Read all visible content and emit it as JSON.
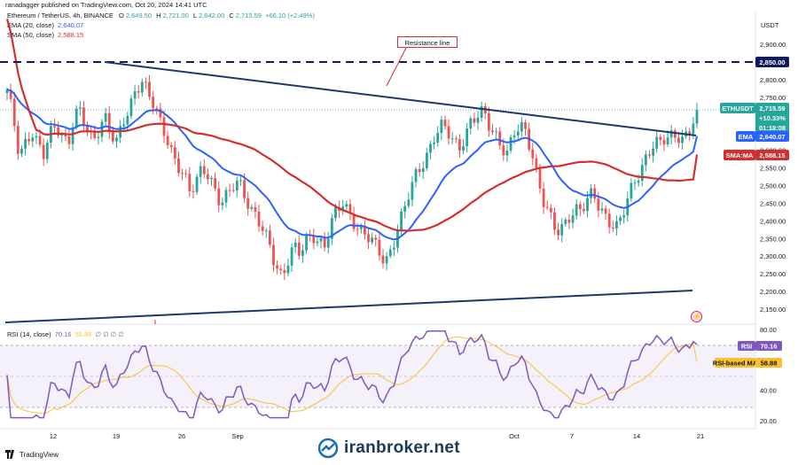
{
  "header": {
    "published": "ranadagger published on TradingView.com, Oct 20, 2024 14:41 UTC"
  },
  "symbol": {
    "name": "Ethereum / TetherUS, 4h, BINANCE",
    "open_label": "O",
    "open": "2,649.50",
    "high_label": "H",
    "high": "2,721.00",
    "low_label": "L",
    "low": "2,642.00",
    "close_label": "C",
    "close": "2,715.59",
    "change": "+66.10 (+2.49%)"
  },
  "ema": {
    "label": "EMA (20, close)",
    "value": "2,640.07"
  },
  "sma": {
    "label": "SMA (50, close)",
    "value": "2,588.15"
  },
  "rsi_legend": {
    "label": "RSI (14, close)",
    "value": "70.16",
    "value2": "58.88",
    "extra": "∅ ∅ ∅ ∅"
  },
  "annotation": {
    "text": "Resistance line"
  },
  "currency": "USDT",
  "tags": {
    "level": "2,850.00",
    "ticker": "ETHUSDT",
    "price": "2,715.59",
    "pct": "+10.33%",
    "timer": "01:18:08",
    "ema_name": "EMA",
    "ema_value": "2,640.07",
    "sma_name": "SMA:MA",
    "sma_value": "2,588.15",
    "rsi_name": "RSI",
    "rsi_value": "70.16",
    "rsima_name": "RSI-based MA",
    "rsima_value": "58.88"
  },
  "footer": {
    "brand": "TradingView",
    "watermark": "iranbroker.net"
  },
  "colors": {
    "up": "#26a69a",
    "down": "#ef5350",
    "ema": "#2962ff",
    "sma": "#d32f2f",
    "trendline": "#1b3a6b",
    "level": "#0d1b5e",
    "rsi": "#7e57c2",
    "rsi_ma": "#fbc02d"
  },
  "chart_data": [
    {
      "type": "candlestick",
      "title": "Ethereum / TetherUS, 4h, BINANCE",
      "x_ticks": [
        "12",
        "19",
        "26",
        "Sep",
        "Oct",
        "7",
        "14",
        "21"
      ],
      "y_ticks": [
        2150,
        2200,
        2250,
        2300,
        2350,
        2400,
        2450,
        2500,
        2550,
        2600,
        2650,
        2700,
        2750,
        2800,
        2850,
        2900
      ],
      "y_tick_labels": [
        "2,150.00",
        "2,200.00",
        "2,250.00",
        "2,300.00",
        "2,350.00",
        "2,400.00",
        "2,450.00",
        "2,500.00",
        "2,550.00",
        "2,600.00",
        "2,650.00",
        "2,700.00",
        "2,750.00",
        "2,800.00",
        "2,850.00",
        "2,900.00"
      ],
      "ylim": [
        2110,
        2960
      ],
      "closes": [
        2760,
        2690,
        2590,
        2630,
        2660,
        2610,
        2580,
        2640,
        2680,
        2650,
        2620,
        2690,
        2700,
        2660,
        2630,
        2670,
        2700,
        2640,
        2610,
        2680,
        2720,
        2780,
        2800,
        2760,
        2720,
        2680,
        2650,
        2600,
        2560,
        2520,
        2470,
        2510,
        2560,
        2540,
        2490,
        2440,
        2460,
        2500,
        2520,
        2480,
        2430,
        2400,
        2360,
        2330,
        2280,
        2250,
        2290,
        2320,
        2300,
        2340,
        2370,
        2350,
        2330,
        2380,
        2420,
        2450,
        2430,
        2400,
        2370,
        2350,
        2330,
        2310,
        2290,
        2330,
        2380,
        2420,
        2480,
        2530,
        2570,
        2600,
        2640,
        2660,
        2650,
        2630,
        2610,
        2650,
        2680,
        2690,
        2700,
        2670,
        2650,
        2620,
        2590,
        2640,
        2660,
        2650,
        2600,
        2520,
        2450,
        2400,
        2360,
        2380,
        2420,
        2440,
        2430,
        2450,
        2470,
        2440,
        2420,
        2400,
        2380,
        2420,
        2470,
        2520,
        2560,
        2600,
        2620,
        2610,
        2630,
        2640,
        2650,
        2640,
        2660,
        2715
      ],
      "series": [
        {
          "name": "EMA (20, close)",
          "last": 2640.07
        },
        {
          "name": "SMA (50, close)",
          "last": 2588.15
        }
      ],
      "horizontal_levels": [
        2850
      ],
      "trendlines": [
        {
          "name": "Resistance line",
          "from": [
            "Aug 5",
            2850
          ],
          "to": [
            "Oct 20",
            2640
          ]
        },
        {
          "from": [
            "Aug 5",
            2110
          ],
          "to": [
            "Oct 20",
            2200
          ]
        }
      ]
    },
    {
      "type": "line",
      "title": "RSI (14, close)",
      "y_ticks": [
        20,
        40,
        60,
        80
      ],
      "y_tick_labels": [
        "20.00",
        "40.00",
        "60.00",
        "80.00"
      ],
      "ylim": [
        15,
        85
      ],
      "bands": [
        30,
        70
      ],
      "series": [
        {
          "name": "RSI",
          "last": 70.16
        },
        {
          "name": "RSI-based MA",
          "last": 58.88
        }
      ]
    }
  ]
}
